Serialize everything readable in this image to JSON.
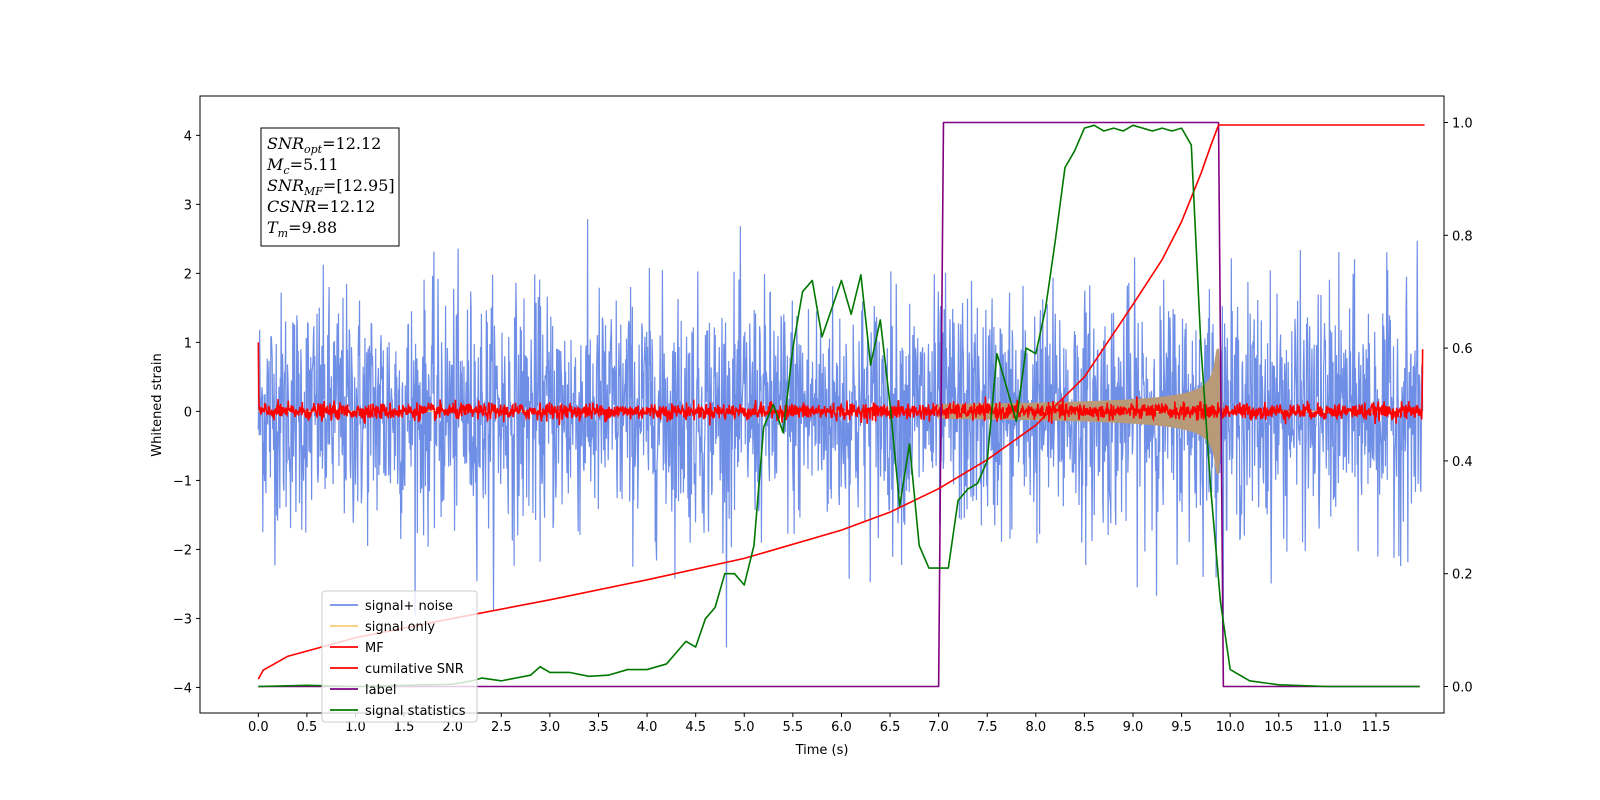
{
  "chart_data": {
    "type": "line",
    "xlabel": "Time (s)",
    "ylabel": "Whitened strain",
    "xlim": [
      -0.6,
      12.2
    ],
    "ylim": [
      -4.37,
      4.57
    ],
    "y2lim": [
      -0.047,
      1.047
    ],
    "xticks": [
      "0.0",
      "0.5",
      "1.0",
      "1.5",
      "2.0",
      "2.5",
      "3.0",
      "3.5",
      "4.0",
      "4.5",
      "5.0",
      "5.5",
      "6.0",
      "6.5",
      "7.0",
      "7.5",
      "8.0",
      "8.5",
      "9.0",
      "9.5",
      "10.0",
      "10.5",
      "11.0",
      "11.5"
    ],
    "yticks": [
      "−4",
      "−3",
      "−2",
      "−1",
      "0",
      "1",
      "2",
      "3",
      "4"
    ],
    "y2ticks": [
      "0.0",
      "0.2",
      "0.4",
      "0.6",
      "0.8",
      "1.0"
    ],
    "colors": {
      "signal_noise": "#6f8ee6",
      "signal_only": "#f7cf73",
      "mf": "#ff0000",
      "csnr": "#ff0000",
      "label": "#800080",
      "stats": "#007800"
    },
    "annotation": [
      {
        "base": "SNR",
        "sub": "opt",
        "value": "=12.12"
      },
      {
        "base": "M",
        "sub": "c",
        "value": "=5.11"
      },
      {
        "base": "SNR",
        "sub": "MF",
        "value": "=[12.95]"
      },
      {
        "base": "CSNR",
        "sub": "",
        "value": "=12.12"
      },
      {
        "base": "T",
        "sub": "m",
        "value": "=9.88"
      }
    ],
    "legend": [
      "signal+ noise",
      "signal only",
      "MF",
      "cumilative SNR",
      "label",
      "signal statistics"
    ],
    "series": [
      {
        "name": "label",
        "axis": "right",
        "x": [
          0.0,
          7.0,
          7.05,
          9.88,
          9.93,
          11.95
        ],
        "y": [
          0.0,
          0.0,
          1.0,
          1.0,
          0.0,
          0.0
        ]
      },
      {
        "name": "cumilative SNR",
        "axis": "left",
        "x": [
          0.0,
          0.05,
          0.3,
          1.0,
          2.0,
          3.0,
          4.0,
          5.0,
          6.0,
          6.5,
          7.0,
          7.5,
          8.0,
          8.5,
          9.0,
          9.3,
          9.5,
          9.7,
          9.8,
          9.88,
          12.0
        ],
        "y": [
          -3.88,
          -3.75,
          -3.55,
          -3.28,
          -3.0,
          -2.73,
          -2.44,
          -2.13,
          -1.72,
          -1.46,
          -1.12,
          -0.7,
          -0.2,
          0.5,
          1.55,
          2.2,
          2.75,
          3.45,
          3.85,
          4.15,
          4.15
        ]
      },
      {
        "name": "signal statistics",
        "axis": "right",
        "x": [
          0.0,
          0.5,
          1.0,
          1.5,
          2.0,
          2.2,
          2.3,
          2.5,
          2.8,
          2.9,
          3.0,
          3.2,
          3.4,
          3.6,
          3.8,
          4.0,
          4.2,
          4.4,
          4.5,
          4.6,
          4.7,
          4.8,
          4.9,
          5.0,
          5.1,
          5.2,
          5.3,
          5.4,
          5.5,
          5.6,
          5.7,
          5.8,
          5.9,
          6.0,
          6.1,
          6.2,
          6.3,
          6.4,
          6.5,
          6.6,
          6.7,
          6.8,
          6.9,
          7.0,
          7.1,
          7.2,
          7.3,
          7.4,
          7.5,
          7.6,
          7.7,
          7.8,
          7.9,
          8.0,
          8.1,
          8.2,
          8.3,
          8.4,
          8.5,
          8.6,
          8.7,
          8.8,
          8.9,
          9.0,
          9.1,
          9.2,
          9.3,
          9.4,
          9.5,
          9.6,
          9.7,
          9.8,
          9.9,
          10.0,
          10.2,
          10.5,
          11.0,
          11.95
        ],
        "y": [
          0.0,
          0.002,
          0.0,
          0.002,
          0.004,
          0.01,
          0.015,
          0.01,
          0.02,
          0.035,
          0.025,
          0.025,
          0.018,
          0.02,
          0.03,
          0.03,
          0.04,
          0.08,
          0.07,
          0.12,
          0.14,
          0.2,
          0.2,
          0.18,
          0.25,
          0.46,
          0.5,
          0.45,
          0.6,
          0.7,
          0.72,
          0.62,
          0.67,
          0.72,
          0.66,
          0.73,
          0.57,
          0.65,
          0.5,
          0.32,
          0.43,
          0.25,
          0.21,
          0.21,
          0.21,
          0.33,
          0.35,
          0.36,
          0.4,
          0.59,
          0.53,
          0.47,
          0.6,
          0.59,
          0.67,
          0.79,
          0.92,
          0.95,
          0.99,
          0.995,
          0.985,
          0.99,
          0.985,
          0.995,
          0.99,
          0.985,
          0.99,
          0.985,
          0.99,
          0.96,
          0.6,
          0.35,
          0.15,
          0.03,
          0.01,
          0.003,
          0.0,
          0.0
        ]
      }
    ],
    "noise_sigma": 0.85,
    "mf_sigma": 0.06,
    "signal_envelope": {
      "start": 7.0,
      "peak": 9.88,
      "start_amp": 0.1,
      "peak_amp": 0.9
    }
  }
}
